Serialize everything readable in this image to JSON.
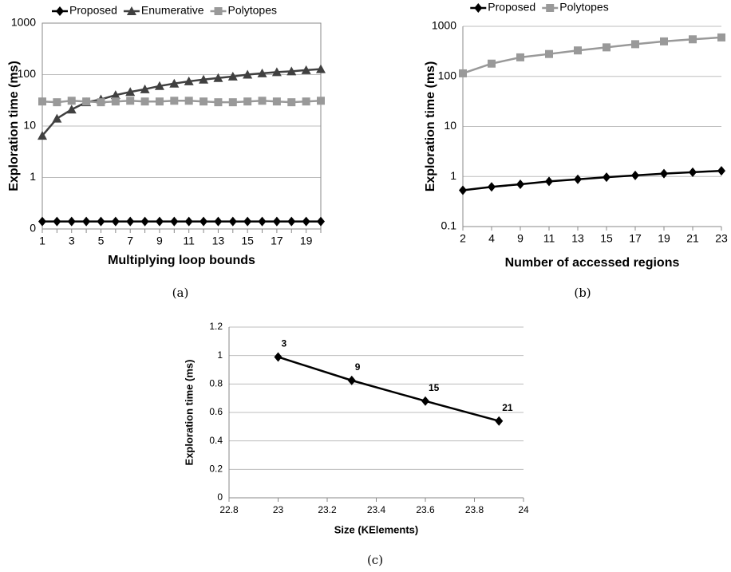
{
  "chart_data": [
    {
      "type": "line",
      "caption": "(a)",
      "x_label": "Multiplying loop bounds",
      "y_label": "Exploration time (ms)",
      "categories": [
        "1",
        null,
        "3",
        null,
        "5",
        null,
        "7",
        null,
        "9",
        null,
        "11",
        null,
        "13",
        null,
        "15",
        null,
        "17",
        null,
        "19",
        null
      ],
      "log_scale": true,
      "grid": true,
      "legend": "top",
      "ylim": [
        0.1,
        1000
      ],
      "yticks": [
        {
          "value": 0.1,
          "label": "0"
        },
        1,
        10,
        100,
        1000
      ],
      "series": [
        {
          "name": "Proposed",
          "color": "#000000",
          "marker": "diamond",
          "values": [
            0.14,
            0.14,
            0.14,
            0.14,
            0.14,
            0.14,
            0.14,
            0.14,
            0.14,
            0.14,
            0.14,
            0.14,
            0.14,
            0.14,
            0.14,
            0.14,
            0.14,
            0.14,
            0.14,
            0.14
          ]
        },
        {
          "name": "Enumerative",
          "color": "#404040",
          "marker": "triangle",
          "values": [
            6.5,
            14,
            21,
            29,
            33,
            40,
            46,
            52,
            60,
            67,
            74,
            80,
            86,
            92,
            100,
            106,
            112,
            116,
            122,
            128
          ]
        },
        {
          "name": "Polytopes",
          "color": "#999999",
          "marker": "square",
          "values": [
            30,
            29,
            31,
            30,
            29,
            30,
            31,
            30,
            30,
            31,
            31,
            30,
            29,
            29,
            30,
            31,
            30,
            29,
            30,
            31
          ]
        }
      ]
    },
    {
      "type": "line",
      "caption": "(b)",
      "x_label": "Number of accessed regions",
      "y_label": "Exploration time (ms)",
      "categories": [
        "2",
        "4",
        "9",
        "11",
        "13",
        "15",
        "17",
        "19",
        "21",
        "23"
      ],
      "log_scale": true,
      "grid": true,
      "legend": "top",
      "ylim": [
        0.1,
        1000
      ],
      "yticks": [
        0.1,
        1,
        10,
        100,
        1000
      ],
      "series": [
        {
          "name": "Proposed",
          "color": "#000000",
          "marker": "diamond",
          "values": [
            0.53,
            0.62,
            0.7,
            0.8,
            0.88,
            0.97,
            1.05,
            1.14,
            1.22,
            1.3
          ]
        },
        {
          "name": "Polytopes",
          "color": "#999999",
          "marker": "square",
          "values": [
            115,
            180,
            240,
            280,
            330,
            380,
            440,
            500,
            550,
            600
          ]
        }
      ]
    },
    {
      "type": "line",
      "caption": "(c)",
      "x_label": "Size (KElements)",
      "y_label": "Exploration time (ms)",
      "x": [
        23,
        23.3,
        23.6,
        23.9
      ],
      "values": [
        0.99,
        0.825,
        0.68,
        0.54
      ],
      "point_labels": [
        "3",
        "9",
        "15",
        "21"
      ],
      "color": "#000000",
      "marker": "diamond",
      "grid": true,
      "xlim": [
        22.8,
        24
      ],
      "xticks": [
        22.8,
        23,
        23.2,
        23.4,
        23.6,
        23.8,
        24
      ],
      "ylim": [
        0,
        1.2
      ],
      "yticks": [
        0,
        0.2,
        0.4,
        0.6,
        0.8,
        1,
        1.2
      ]
    }
  ]
}
